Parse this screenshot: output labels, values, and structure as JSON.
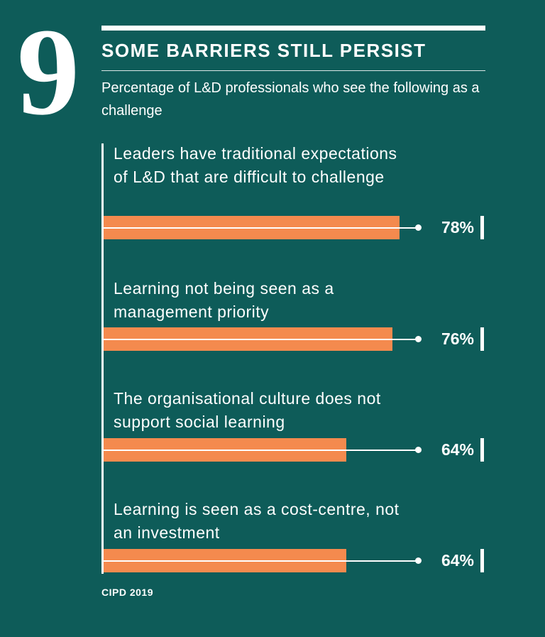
{
  "number": "9",
  "title": "SOME BARRIERS STILL PERSIST",
  "subtitle": "Percentage of L&D professionals who see the following as a challenge",
  "source": "CIPD 2019",
  "colors": {
    "background": "#0e5c59",
    "bar": "#f48a4e",
    "text": "#ffffff"
  },
  "chart_data": {
    "type": "bar",
    "orientation": "horizontal",
    "categories": [
      "Leaders have traditional expectations of L&D that are difficult to challenge",
      "Learning not being seen as a management priority",
      "The organisational culture does not support social learning",
      "Learning is seen as a cost-centre, not an investment"
    ],
    "values": [
      78,
      76,
      64,
      64
    ],
    "value_labels": [
      "78%",
      "76%",
      "64%",
      "64%"
    ],
    "xlim": [
      0,
      100
    ],
    "grid": false,
    "legend": "none"
  },
  "rows": [
    {
      "label": "Leaders have traditional expectations of L&D that are difficult to challenge",
      "value_label": "78%"
    },
    {
      "label": "Learning not being seen as a management priority",
      "value_label": "76%"
    },
    {
      "label": "The organisational culture does not support social learning",
      "value_label": "64%"
    },
    {
      "label": "Learning is seen as a cost-centre, not an investment",
      "value_label": "64%"
    }
  ]
}
